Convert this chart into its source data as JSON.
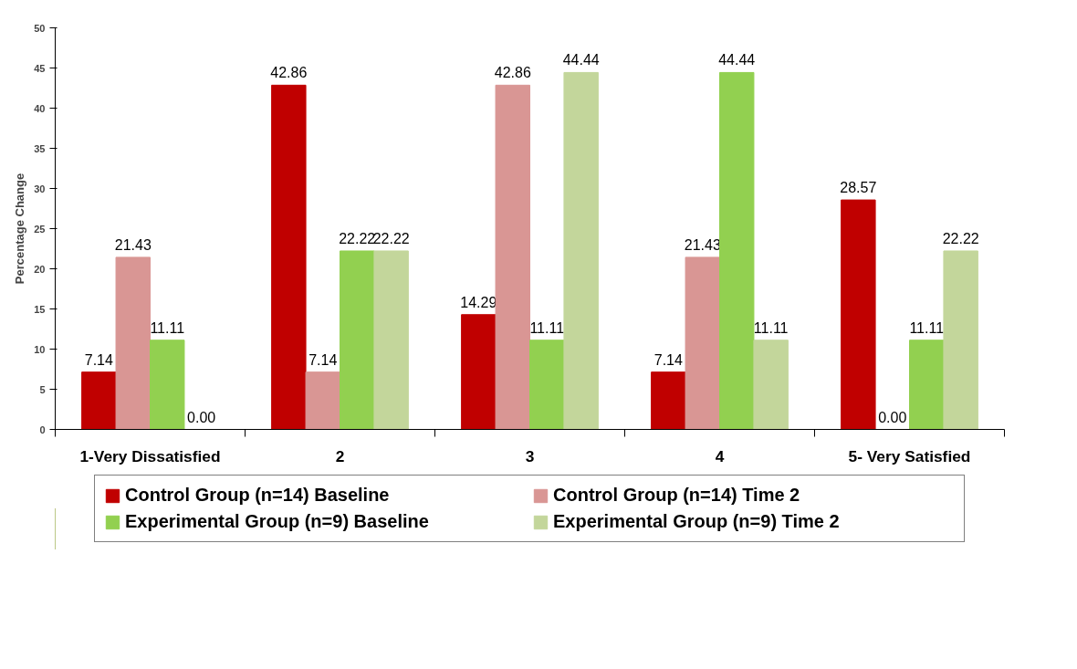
{
  "chart_data": {
    "type": "bar",
    "ylabel": "Percentage Change",
    "categories": [
      "1-Very Dissatisfied",
      "2",
      "3",
      "4",
      "5- Very Satisfied"
    ],
    "series": [
      {
        "name": "Control Group (n=14) Baseline",
        "color": "#c00000",
        "values": [
          7.14,
          42.86,
          14.29,
          7.14,
          28.57
        ],
        "value_labels": [
          "7.14",
          "42.86",
          "14.29",
          "7.14",
          "28.57"
        ]
      },
      {
        "name": "Control Group (n=14) Time 2",
        "color": "#d99694",
        "values": [
          21.43,
          7.14,
          42.86,
          21.43,
          0
        ],
        "value_labels": [
          "21.43",
          "7.14",
          "42.86",
          "21.43",
          "0.00"
        ]
      },
      {
        "name": "Experimental Group (n=9) Baseline",
        "color": "#92d050",
        "values": [
          11.11,
          22.22,
          11.11,
          44.44,
          11.11
        ],
        "value_labels": [
          "11.11",
          "22.22",
          "11.11",
          "44.44",
          "11.11"
        ]
      },
      {
        "name": "Experimental Group (n=9) Time 2",
        "color": "#c3d69b",
        "values": [
          0,
          22.22,
          44.44,
          11.11,
          22.22
        ],
        "value_labels": [
          "0.00",
          "22.22",
          "44.44",
          "11.11",
          "22.22"
        ]
      }
    ],
    "ylim": [
      0,
      50
    ],
    "yticks": [
      0,
      5,
      10,
      15,
      20,
      25,
      30,
      35,
      40,
      45,
      50
    ],
    "grid": false,
    "legend": "bottom"
  }
}
